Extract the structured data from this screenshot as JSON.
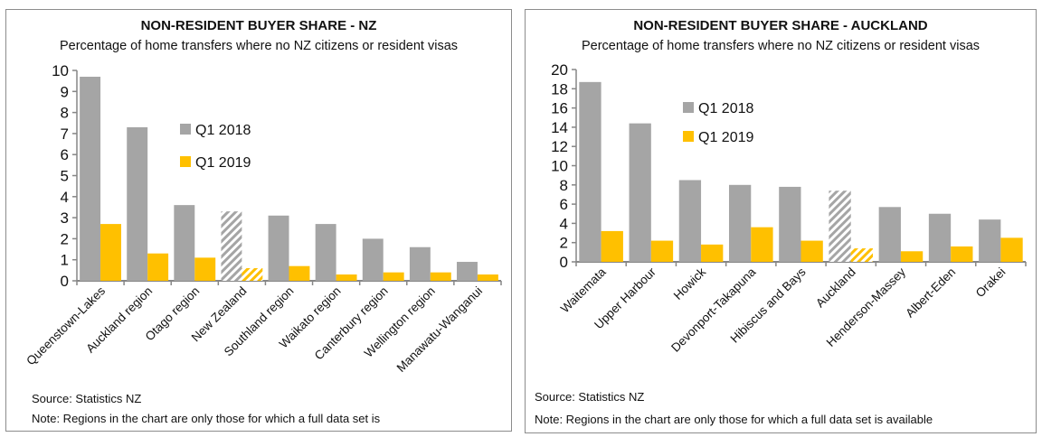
{
  "colors": {
    "q1_2018": "#a5a5a5",
    "q1_2019": "#ffc000",
    "axis": "#868686",
    "border": "#8c8c8c"
  },
  "chart_data": [
    {
      "type": "bar",
      "title": "NON-RESIDENT  BUYER SHARE - NZ",
      "subtitle": "Percentage of  home transfers where no NZ citizens or resident visas",
      "categories": [
        "Queenstown-Lakes",
        "Auckland region",
        "Otago region",
        "New Zealand",
        "Southland region",
        "Waikato region",
        "Canterbury region",
        "Wellington region",
        "Manawatu-Wanganui"
      ],
      "highlight_category": "New Zealand",
      "series": [
        {
          "name": "Q1 2018",
          "values": [
            9.7,
            7.3,
            3.6,
            3.3,
            3.1,
            2.7,
            2.0,
            1.6,
            0.9
          ]
        },
        {
          "name": "Q1 2019",
          "values": [
            2.7,
            1.3,
            1.1,
            0.6,
            0.7,
            0.3,
            0.4,
            0.4,
            0.3
          ]
        }
      ],
      "ylim": [
        0,
        10
      ],
      "yticks": [
        0,
        1,
        2,
        3,
        4,
        5,
        6,
        7,
        8,
        9,
        10
      ],
      "xlabel": "",
      "ylabel": "",
      "legend": "upper-center",
      "grid": false,
      "source": "Source: Statistics NZ",
      "note": "Note: Regions in the chart are only those for which a full data set is"
    },
    {
      "type": "bar",
      "title": "NON-RESIDENT  BUYER SHARE - AUCKLAND",
      "subtitle": "Percentage of home  transfers where no NZ citizens or resident visas",
      "categories": [
        "Waitemata",
        "Upper Harbour",
        "Howick",
        "Devonport-Takapuna",
        "Hibiscus and Bays",
        "Auckland",
        "Henderson-Massey",
        "Albert-Eden",
        "Orakei"
      ],
      "highlight_category": "Auckland",
      "series": [
        {
          "name": "Q1 2018",
          "values": [
            18.7,
            14.4,
            8.5,
            8.0,
            7.8,
            7.4,
            5.7,
            5.0,
            4.4
          ]
        },
        {
          "name": "Q1 2019",
          "values": [
            3.2,
            2.2,
            1.8,
            3.6,
            2.2,
            1.4,
            1.1,
            1.6,
            2.5
          ]
        }
      ],
      "ylim": [
        0,
        20
      ],
      "yticks": [
        0,
        2,
        4,
        6,
        8,
        10,
        12,
        14,
        16,
        18,
        20
      ],
      "xlabel": "",
      "ylabel": "",
      "legend": "upper-center",
      "grid": false,
      "source": "Source: Statistics NZ",
      "note": "Note: Regions in the chart are only those for which a full data set is available"
    }
  ]
}
